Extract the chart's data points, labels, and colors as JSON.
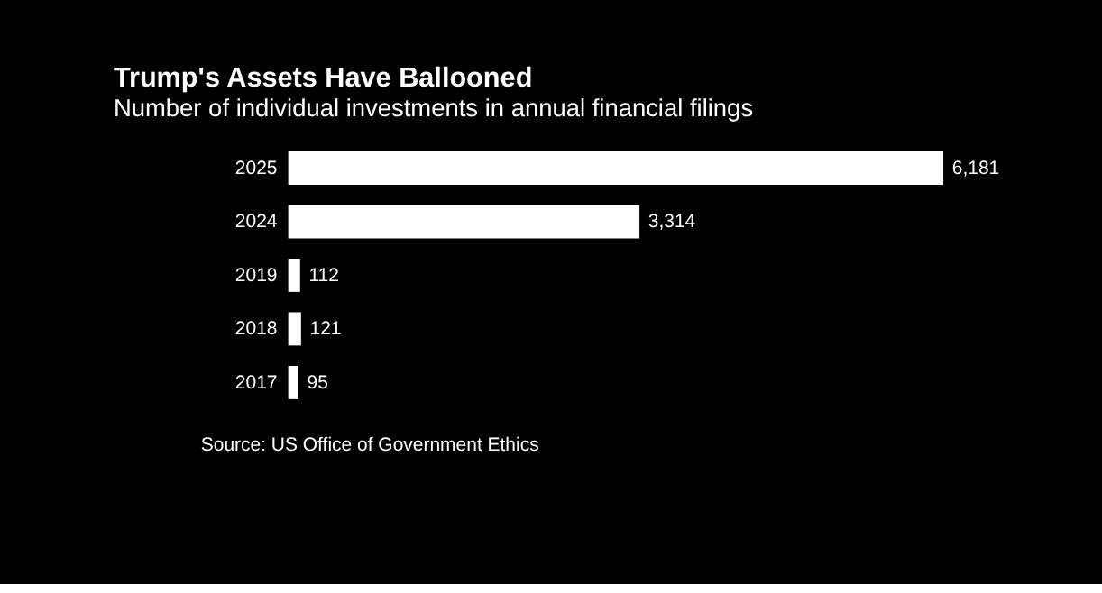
{
  "chart_data": {
    "type": "bar",
    "orientation": "horizontal",
    "title": "Trump's Assets Have Ballooned",
    "subtitle": "Number of individual investments in annual financial filings",
    "categories": [
      "2025",
      "2024",
      "2019",
      "2018",
      "2017"
    ],
    "values": [
      6181,
      3314,
      112,
      121,
      95
    ],
    "value_labels": [
      "6,181",
      "3,314",
      "112",
      "121",
      "95"
    ],
    "color": "#ffffff",
    "grid": false,
    "annotations": [
      "Source: US Office of Government Ethics"
    ]
  }
}
